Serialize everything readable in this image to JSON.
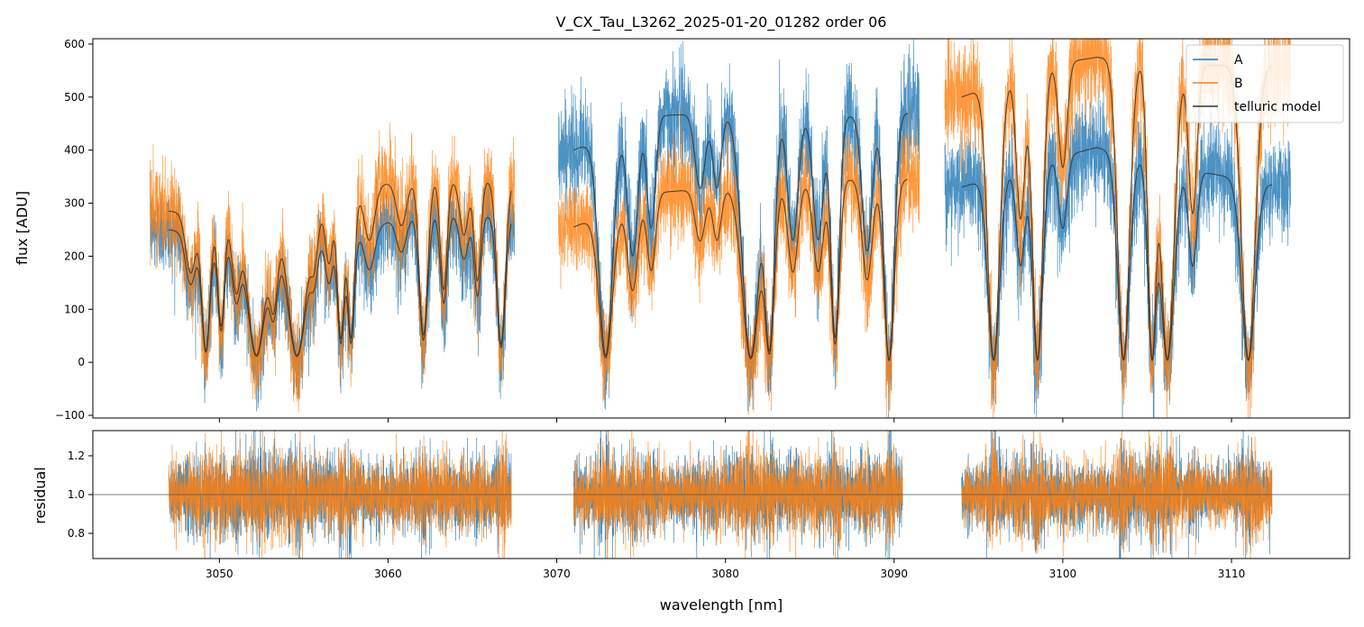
{
  "chart_data": {
    "type": "line",
    "title": "V_CX_Tau_L3262_2025-01-20_01282  order 06",
    "xlabel": "wavelength [nm]",
    "xlim": [
      3042.5,
      3117.0
    ],
    "xticks": [
      3050,
      3060,
      3070,
      3080,
      3090,
      3100,
      3110
    ],
    "xtick_labels": [
      "3050",
      "3060",
      "3070",
      "3080",
      "3090",
      "3100",
      "3110"
    ],
    "colors": {
      "A": "#1f77b4",
      "B": "#ff7f0e",
      "model": "#333333"
    },
    "panels": [
      {
        "name": "flux",
        "ylabel": "flux [ADU]",
        "ylim": [
          -105,
          610
        ],
        "yticks": [
          -100,
          0,
          100,
          200,
          300,
          400,
          500,
          600
        ],
        "ytick_labels": [
          "−100",
          "0",
          "100",
          "200",
          "300",
          "400",
          "500",
          "600"
        ],
        "legend_position": "top-right",
        "legend": [
          "A",
          "B",
          "telluric model"
        ],
        "segments": [
          [
            3045.9,
            3067.5
          ],
          [
            3070.1,
            3091.5
          ],
          [
            3093.0,
            3113.5
          ]
        ],
        "model_segments": [
          [
            3047.0,
            3067.3
          ],
          [
            3071.0,
            3090.8
          ],
          [
            3094.0,
            3112.4
          ]
        ],
        "continuum": [
          {
            "x": [
              3047,
              3055,
              3059,
              3061,
              3067.3
            ],
            "A": [
              250,
              215,
              250,
              280,
              275
            ],
            "B": [
              285,
              260,
              330,
              345,
              340
            ]
          },
          {
            "x": [
              3071,
              3076,
              3080,
              3084,
              3088,
              3090.8
            ],
            "A": [
              400,
              465,
              470,
              460,
              465,
              470
            ],
            "B": [
              255,
              320,
              330,
              340,
              345,
              345
            ]
          },
          {
            "x": [
              3094,
              3099,
              3102,
              3108,
              3112.4
            ],
            "A": [
              330,
              380,
              405,
              360,
              335
            ],
            "B": [
              500,
              560,
              575,
              560,
              560
            ]
          }
        ],
        "lines": [
          {
            "x": 3048.3,
            "depth": 0.4,
            "width": 0.3
          },
          {
            "x": 3049.2,
            "depth": 0.92,
            "width": 0.25
          },
          {
            "x": 3050.1,
            "depth": 0.75,
            "width": 0.2
          },
          {
            "x": 3051.0,
            "depth": 0.5,
            "width": 0.25
          },
          {
            "x": 3052.2,
            "depth": 0.95,
            "width": 0.5
          },
          {
            "x": 3053.2,
            "depth": 0.6,
            "width": 0.25
          },
          {
            "x": 3054.6,
            "depth": 0.95,
            "width": 0.5
          },
          {
            "x": 3055.6,
            "depth": 0.3,
            "width": 0.2
          },
          {
            "x": 3056.5,
            "depth": 0.35,
            "width": 0.2
          },
          {
            "x": 3057.2,
            "depth": 0.85,
            "width": 0.2
          },
          {
            "x": 3057.8,
            "depth": 0.85,
            "width": 0.2
          },
          {
            "x": 3058.9,
            "depth": 0.3,
            "width": 0.3
          },
          {
            "x": 3060.8,
            "depth": 0.25,
            "width": 0.3
          },
          {
            "x": 3062.1,
            "depth": 0.85,
            "width": 0.25
          },
          {
            "x": 3063.3,
            "depth": 0.6,
            "width": 0.2
          },
          {
            "x": 3064.5,
            "depth": 0.3,
            "width": 0.25
          },
          {
            "x": 3065.3,
            "depth": 0.55,
            "width": 0.2
          },
          {
            "x": 3066.7,
            "depth": 0.9,
            "width": 0.25
          },
          {
            "x": 3072.9,
            "depth": 0.97,
            "width": 0.4
          },
          {
            "x": 3074.5,
            "depth": 0.55,
            "width": 0.3
          },
          {
            "x": 3075.6,
            "depth": 0.45,
            "width": 0.25
          },
          {
            "x": 3078.5,
            "depth": 0.3,
            "width": 0.3
          },
          {
            "x": 3079.5,
            "depth": 0.3,
            "width": 0.25
          },
          {
            "x": 3081.5,
            "depth": 0.98,
            "width": 0.5
          },
          {
            "x": 3082.6,
            "depth": 0.95,
            "width": 0.3
          },
          {
            "x": 3084.0,
            "depth": 0.5,
            "width": 0.3
          },
          {
            "x": 3085.5,
            "depth": 0.5,
            "width": 0.3
          },
          {
            "x": 3086.5,
            "depth": 0.9,
            "width": 0.25
          },
          {
            "x": 3088.4,
            "depth": 0.55,
            "width": 0.3
          },
          {
            "x": 3089.7,
            "depth": 0.99,
            "width": 0.3
          },
          {
            "x": 3095.9,
            "depth": 0.99,
            "width": 0.35
          },
          {
            "x": 3097.5,
            "depth": 0.5,
            "width": 0.25
          },
          {
            "x": 3098.5,
            "depth": 0.99,
            "width": 0.3
          },
          {
            "x": 3100.0,
            "depth": 0.35,
            "width": 0.25
          },
          {
            "x": 3103.6,
            "depth": 0.99,
            "width": 0.35
          },
          {
            "x": 3105.3,
            "depth": 0.99,
            "width": 0.25
          },
          {
            "x": 3106.2,
            "depth": 0.99,
            "width": 0.4
          },
          {
            "x": 3107.7,
            "depth": 0.5,
            "width": 0.25
          },
          {
            "x": 3111.0,
            "depth": 0.99,
            "width": 0.4
          }
        ]
      },
      {
        "name": "residual",
        "ylabel": "residual",
        "ylim": [
          0.67,
          1.33
        ],
        "yticks": [
          0.8,
          1.0,
          1.2
        ],
        "ytick_labels": [
          "0.8",
          "1.0",
          "1.2"
        ],
        "reference_line": 1.0,
        "segments": [
          [
            3047.0,
            3067.3
          ],
          [
            3071.0,
            3090.5
          ],
          [
            3094.0,
            3112.4
          ]
        ],
        "scatter": 0.15
      }
    ]
  }
}
